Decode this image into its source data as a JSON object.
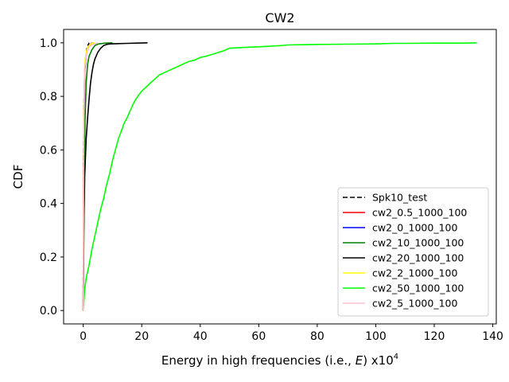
{
  "chart_data": {
    "type": "line",
    "title": "CW2",
    "xlabel": "Energy in high frequencies (i.e., E) x10^4",
    "xlabel_parts": {
      "prefix": "Energy in high frequencies (i.e., ",
      "italic": "E",
      "suffix": ") x10",
      "exp": "4"
    },
    "ylabel": "CDF",
    "xlim": [
      -6.7,
      141.2
    ],
    "ylim": [
      -0.05,
      1.05
    ],
    "xticks": [
      0,
      20,
      40,
      60,
      80,
      100,
      120,
      140
    ],
    "yticks": [
      0.0,
      0.2,
      0.4,
      0.6,
      0.8,
      1.0
    ],
    "xtick_labels": [
      "0",
      "20",
      "40",
      "60",
      "80",
      "100",
      "120",
      "140"
    ],
    "ytick_labels": [
      "0.0",
      "0.2",
      "0.4",
      "0.6",
      "0.8",
      "1.0"
    ],
    "grid": false,
    "legend_position": "lower right",
    "series": [
      {
        "name": "Spk10_test",
        "color": "#000000",
        "dash": "dashed",
        "x": [
          0.0,
          0.05,
          0.1,
          0.2,
          0.3,
          0.5,
          0.7,
          1.0,
          1.3,
          1.6,
          2.0
        ],
        "y": [
          0.0,
          0.3,
          0.55,
          0.7,
          0.8,
          0.88,
          0.93,
          0.96,
          0.98,
          0.99,
          1.0
        ]
      },
      {
        "name": "cw2_0.5_1000_100",
        "color": "#ff0000",
        "dash": "solid",
        "x": [
          0.0,
          0.1,
          0.2,
          0.4,
          0.6,
          1.0,
          1.5,
          2.0,
          2.5,
          3.0
        ],
        "y": [
          0.0,
          0.4,
          0.7,
          0.85,
          0.92,
          0.96,
          0.98,
          0.99,
          0.995,
          1.0
        ]
      },
      {
        "name": "cw2_0_1000_100",
        "color": "#0000ff",
        "dash": "solid",
        "x": [
          0.0,
          0.1,
          0.2,
          0.4,
          0.6,
          1.0,
          1.5,
          2.0,
          2.5,
          3.0,
          3.5
        ],
        "y": [
          0.0,
          0.35,
          0.65,
          0.82,
          0.9,
          0.95,
          0.975,
          0.99,
          0.995,
          0.998,
          1.0
        ]
      },
      {
        "name": "cw2_10_1000_100",
        "color": "#008000",
        "dash": "solid",
        "x": [
          0.0,
          0.3,
          0.6,
          1.0,
          1.5,
          2.0,
          3.0,
          4.0,
          5.0,
          6.0,
          7.5,
          10.0
        ],
        "y": [
          0.0,
          0.4,
          0.7,
          0.85,
          0.92,
          0.95,
          0.975,
          0.99,
          0.995,
          0.997,
          0.999,
          1.0
        ]
      },
      {
        "name": "cw2_20_1000_100",
        "color": "#000000",
        "dash": "solid",
        "x": [
          0.0,
          0.2,
          0.5,
          1.0,
          1.5,
          2.0,
          2.5,
          3.0,
          3.5,
          4.0,
          5.0,
          6.0,
          7.0,
          8.0,
          9.0,
          12.0,
          15.0,
          18.0,
          22.0
        ],
        "y": [
          0.0,
          0.3,
          0.5,
          0.64,
          0.72,
          0.79,
          0.85,
          0.89,
          0.92,
          0.94,
          0.965,
          0.98,
          0.99,
          0.994,
          0.996,
          0.997,
          0.998,
          0.999,
          1.0
        ]
      },
      {
        "name": "cw2_2_1000_100",
        "color": "#ffff00",
        "dash": "solid",
        "x": [
          0.0,
          0.1,
          0.2,
          0.4,
          0.6,
          1.0,
          1.5,
          2.0,
          2.5,
          3.0,
          4.0
        ],
        "y": [
          0.0,
          0.45,
          0.72,
          0.86,
          0.93,
          0.965,
          0.98,
          0.99,
          0.995,
          0.998,
          1.0
        ]
      },
      {
        "name": "cw2_50_1000_100",
        "color": "#00ff00",
        "dash": "solid",
        "x": [
          0.0,
          0.5,
          1.0,
          2.0,
          3.0,
          4.0,
          5.0,
          6.0,
          7.0,
          8.0,
          9.0,
          10.0,
          11.0,
          12.0,
          13.0,
          14.0,
          15.0,
          16.0,
          17.0,
          18.0,
          19.0,
          20.0,
          21.0,
          22.0,
          23.0,
          24.0,
          25.0,
          26.0,
          28.0,
          30.0,
          32.0,
          34.0,
          36.0,
          38.0,
          40.0,
          42.0,
          45.0,
          48.0,
          50.0,
          55.0,
          60.0,
          65.0,
          68.0,
          70.0,
          75.0,
          80.0,
          90.0,
          100.0,
          106.0,
          110.0,
          120.0,
          130.0,
          134.5
        ],
        "y": [
          0.0,
          0.08,
          0.12,
          0.17,
          0.23,
          0.28,
          0.33,
          0.38,
          0.42,
          0.47,
          0.51,
          0.56,
          0.6,
          0.64,
          0.67,
          0.7,
          0.72,
          0.745,
          0.77,
          0.79,
          0.805,
          0.82,
          0.83,
          0.84,
          0.85,
          0.86,
          0.87,
          0.88,
          0.89,
          0.9,
          0.91,
          0.92,
          0.93,
          0.935,
          0.945,
          0.95,
          0.96,
          0.97,
          0.98,
          0.983,
          0.985,
          0.988,
          0.99,
          0.992,
          0.993,
          0.994,
          0.995,
          0.996,
          0.998,
          0.998,
          0.999,
          0.999,
          1.0
        ]
      },
      {
        "name": "cw2_5_1000_100",
        "color": "#ffc0cb",
        "dash": "solid",
        "x": [
          0.0,
          0.1,
          0.2,
          0.4,
          0.6,
          1.0,
          1.5,
          2.0,
          3.0,
          4.0,
          5.0
        ],
        "y": [
          0.0,
          0.42,
          0.7,
          0.84,
          0.91,
          0.95,
          0.97,
          0.985,
          0.993,
          0.997,
          1.0
        ]
      }
    ]
  }
}
